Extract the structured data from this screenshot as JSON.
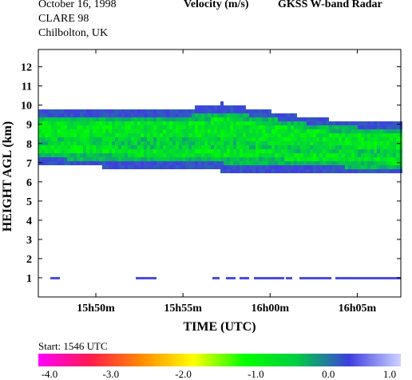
{
  "header": {
    "date": "October  16, 1998",
    "campaign": "CLARE 98",
    "location": "Chilbolton, UK",
    "quantity": "Velocity (m/s)",
    "instrument": "GKSS  W-band Radar",
    "start": "Start: 1546 UTC"
  },
  "chart_data": {
    "type": "heatmap",
    "title": "Velocity (m/s)",
    "xlabel": "TIME (UTC)",
    "ylabel": "HEIGHT AGL (km)",
    "x_ticks": [
      "15h50m",
      "15h55m",
      "16h00m",
      "16h05m"
    ],
    "x_tick_minutes": [
      950,
      955,
      960,
      965
    ],
    "xlim_minutes": [
      946.7,
      967.5
    ],
    "y_ticks": [
      "1",
      "2",
      "3",
      "4",
      "5",
      "6",
      "7",
      "8",
      "9",
      "10",
      "11",
      "12"
    ],
    "ylim": [
      0,
      12.9
    ],
    "colorbar": {
      "ticks": [
        "-4.0",
        "-3.0",
        "-2.0",
        "-1.0",
        "0.0",
        "1.0"
      ],
      "range": [
        -4.0,
        1.0
      ],
      "colors": [
        "#ff00ff",
        "#ff1a4d",
        "#ff8c00",
        "#ffff00",
        "#00ff00",
        "#00cc44",
        "#3e3ee0",
        "#cfd3ff"
      ]
    },
    "cloud_layer": {
      "base_km": [
        6.9,
        6.8,
        6.75,
        6.7,
        6.7,
        6.55,
        6.5,
        6.5,
        6.45,
        6.4,
        6.35
      ],
      "top_km": [
        9.8,
        9.8,
        9.7,
        9.75,
        9.8,
        10.1,
        9.8,
        9.5,
        9.25,
        9.15,
        9.05
      ],
      "core_velocity_ms": -0.8,
      "edge_velocity_ms": 0.3
    },
    "low_echo_km": 1.0
  }
}
